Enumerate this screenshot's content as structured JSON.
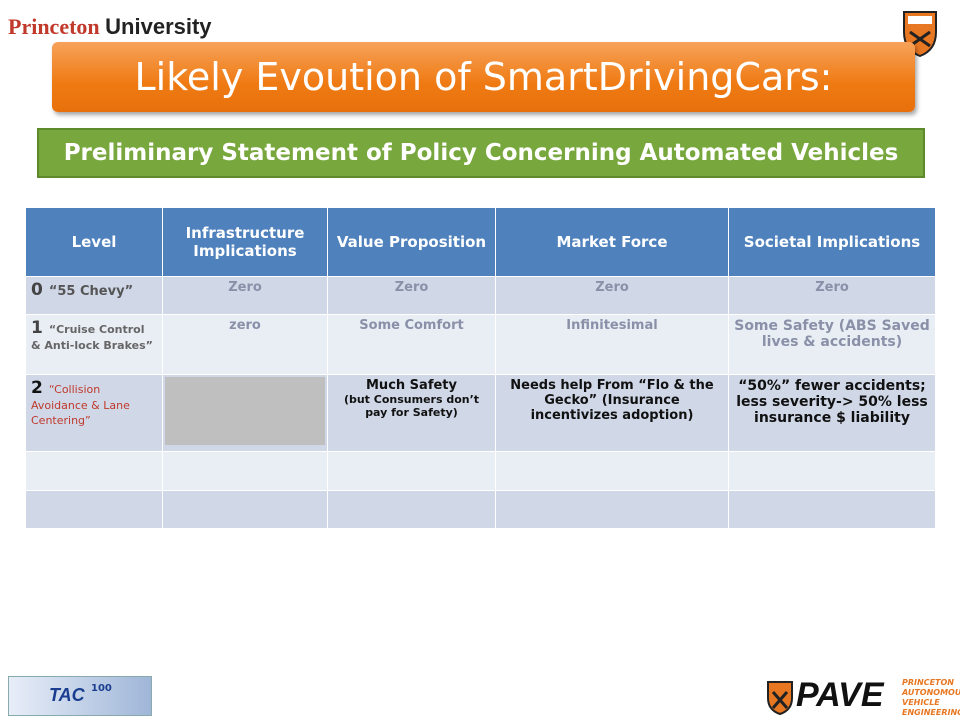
{
  "header": {
    "brand_1": "Princeton",
    "brand_2": "University"
  },
  "title": "Likely Evoution of SmartDrivingCars:",
  "subtitle": "Preliminary Statement of Policy Concerning Automated Vehicles",
  "table": {
    "columns": [
      "Level",
      "Infrastructure Implications",
      "Value Proposition",
      "Market  Force",
      "Societal Implications"
    ],
    "rows": [
      {
        "level": "0",
        "level_name": "“55 Chevy”",
        "infrastructure": "Zero",
        "value": "Zero",
        "market": "Zero",
        "societal": "Zero"
      },
      {
        "level": "1",
        "level_name": "“Cruise Control & Anti-lock Brakes”",
        "infrastructure": "zero",
        "value": "Some Comfort",
        "market": "Infinitesimal",
        "societal": "Some Safety (ABS Saved lives & accidents)"
      },
      {
        "level": "2",
        "level_name": "“Collision Avoidance & Lane Centering”",
        "value": "Much Safety",
        "value_note": "(but Consumers don’t pay for Safety)",
        "market": "Needs help From “Flo & the Gecko” (Insurance incentivizes adoption)",
        "societal": "“50%” fewer  accidents; less severity-> 50% less insurance $ liability"
      }
    ]
  },
  "footer": {
    "left_logo": {
      "text": "TAC",
      "number": "100"
    },
    "right_logo": {
      "text": "PAVE",
      "lines": [
        "PRINCETON",
        "AUTONOMOUS",
        "VEHICLE",
        "ENGINEERING"
      ]
    }
  }
}
